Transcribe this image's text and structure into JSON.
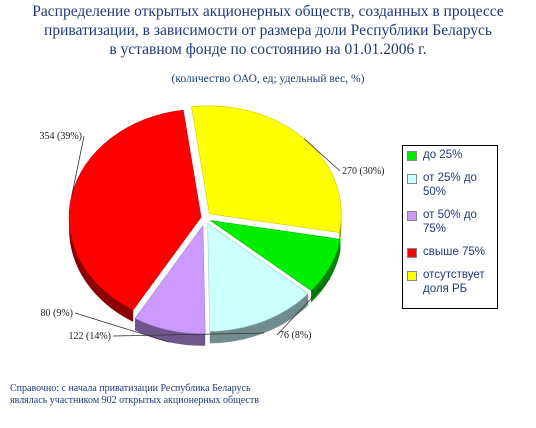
{
  "title_lines": [
    "Распределение открытых акционерных обществ, созданных в процессе",
    "приватизации,  в зависимости от размера доли Республики Беларусь",
    "в уставном фонде по состоянию на 01.01.2006 г."
  ],
  "subtitle": "(количество ОАО, ед;   удельный вес, %)",
  "footnote_lines": [
    "Справочно: с начала приватизации Республика Беларусь",
    "являлась участником 902 открытых акционерных обществ"
  ],
  "chart_data": {
    "type": "pie",
    "slices": [
      {
        "name": "до 25%",
        "value": 76,
        "percent": 8,
        "label": "76  (8%)",
        "color": "#00ee00"
      },
      {
        "name": "от 25% до 50%",
        "value": 122,
        "percent": 14,
        "label": "122  (14%)",
        "color": "#ccffff"
      },
      {
        "name": "от 50% до 75%",
        "value": 80,
        "percent": 9,
        "label": "80  (9%)",
        "color": "#cc99ff"
      },
      {
        "name": "свыше 75%",
        "value": 354,
        "percent": 39,
        "label": "354  (39%)",
        "color": "#ff0000"
      },
      {
        "name": "отсутствует доля РБ",
        "value": 270,
        "percent": 30,
        "label": "270  (30%)",
        "color": "#ffff00"
      }
    ],
    "legend_position": "right",
    "style": "3d-exploded"
  }
}
